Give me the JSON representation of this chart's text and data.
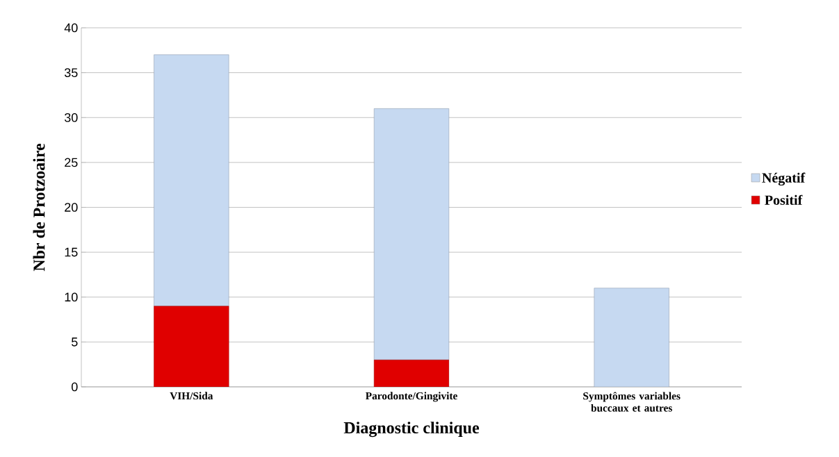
{
  "chart_data": {
    "type": "bar",
    "stacked": true,
    "xlabel": "Diagnostic clinique",
    "ylabel": "Nbr de Protzoaire",
    "categories": [
      "VIH/Sida",
      "Parodonte/Gingivite",
      "Symptômes variables buccaux et autres"
    ],
    "series": [
      {
        "name": "Positif",
        "color": "#e00000",
        "values": [
          9,
          3,
          0
        ]
      },
      {
        "name": "Négatif",
        "color": "#c6d9f1",
        "values": [
          28,
          28,
          11
        ]
      }
    ],
    "ylim": [
      0,
      40
    ],
    "yticks": [
      0,
      5,
      10,
      15,
      20,
      25,
      30,
      35,
      40
    ],
    "grid": "y",
    "legend": "right"
  }
}
